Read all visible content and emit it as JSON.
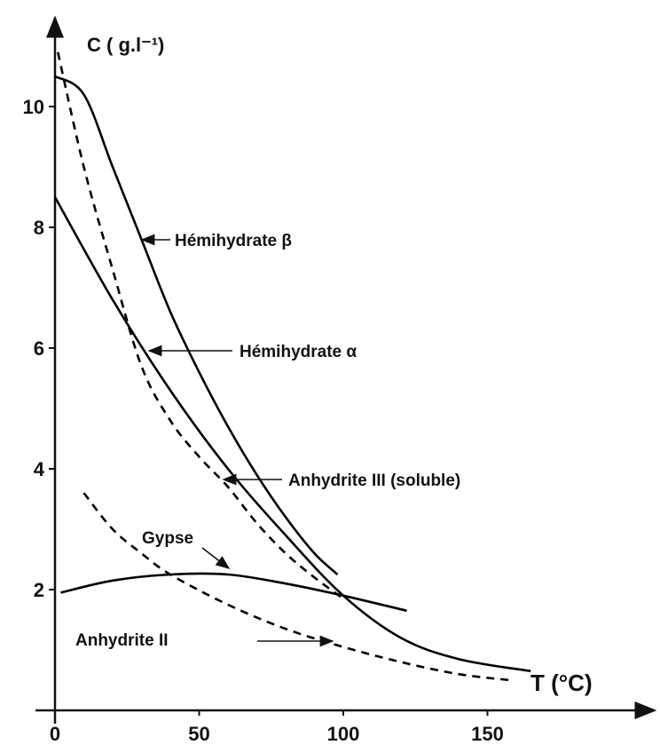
{
  "chart_data": {
    "type": "line",
    "x_label": "T (°C)",
    "y_label": "C ( g.l⁻¹)",
    "xlim": [
      0,
      208
    ],
    "ylim": [
      0,
      11.5
    ],
    "xticks": [
      0,
      50,
      100,
      150
    ],
    "yticks": [
      2,
      4,
      6,
      8,
      10
    ],
    "series": [
      {
        "name": "Hémihydrate β",
        "color": "#000000",
        "dashed": false,
        "x": [
          0,
          10,
          20,
          30,
          40,
          50,
          60,
          70,
          80,
          90,
          98
        ],
        "values": [
          10.5,
          10.2,
          9.0,
          7.8,
          6.6,
          5.6,
          4.7,
          3.9,
          3.2,
          2.6,
          2.25
        ]
      },
      {
        "name": "Hémihydrate α",
        "color": "#000000",
        "dashed": false,
        "x": [
          0,
          20,
          40,
          60,
          80,
          100,
          120,
          140,
          165
        ],
        "values": [
          8.5,
          6.8,
          5.3,
          4.0,
          2.9,
          1.9,
          1.2,
          0.85,
          0.65
        ]
      },
      {
        "name": "Anhydrite III (soluble)",
        "color": "#000000",
        "dashed": true,
        "x": [
          1,
          10,
          20,
          30,
          40,
          50,
          60,
          70,
          80,
          90,
          100
        ],
        "values": [
          10.9,
          9.0,
          7.3,
          5.7,
          4.8,
          4.2,
          3.7,
          3.1,
          2.6,
          2.2,
          1.85
        ]
      },
      {
        "name": "Gypse",
        "color": "#000000",
        "dashed": false,
        "x": [
          2,
          20,
          40,
          60,
          80,
          100,
          122
        ],
        "values": [
          1.95,
          2.15,
          2.25,
          2.25,
          2.1,
          1.9,
          1.65
        ]
      },
      {
        "name": "Anhydrite II",
        "color": "#000000",
        "dashed": true,
        "x": [
          10,
          20,
          30,
          40,
          60,
          80,
          100,
          120,
          140,
          158
        ],
        "values": [
          3.6,
          3.0,
          2.6,
          2.25,
          1.75,
          1.35,
          1.05,
          0.8,
          0.6,
          0.5
        ]
      }
    ]
  }
}
